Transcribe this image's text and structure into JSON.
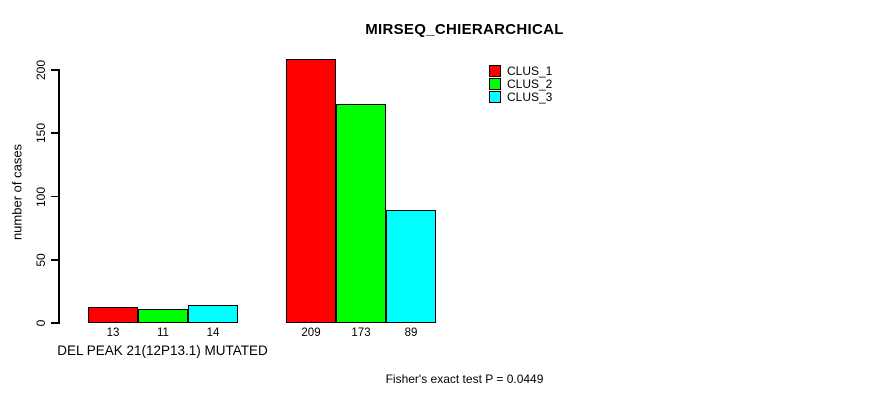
{
  "chart_data": {
    "type": "bar",
    "title": "MIRSEQ_CHIERARCHICAL",
    "ylabel": "number of cases",
    "xlabel": "",
    "categories": [
      "DEL PEAK 21(12P13.1) MUTATED",
      ""
    ],
    "series": [
      {
        "name": "CLUS_1",
        "color": "#FF0000",
        "values": [
          13,
          209
        ]
      },
      {
        "name": "CLUS_2",
        "color": "#00FF00",
        "values": [
          11,
          173
        ]
      },
      {
        "name": "CLUS_3",
        "color": "#00FFFF",
        "values": [
          14,
          89
        ]
      }
    ],
    "ylim": [
      0,
      200
    ],
    "yticks": [
      0,
      50,
      100,
      150,
      200
    ],
    "bar_labels": true,
    "grid": false,
    "legend_position": "top-right",
    "annotation": "Fisher's exact test P = 0.0449"
  }
}
